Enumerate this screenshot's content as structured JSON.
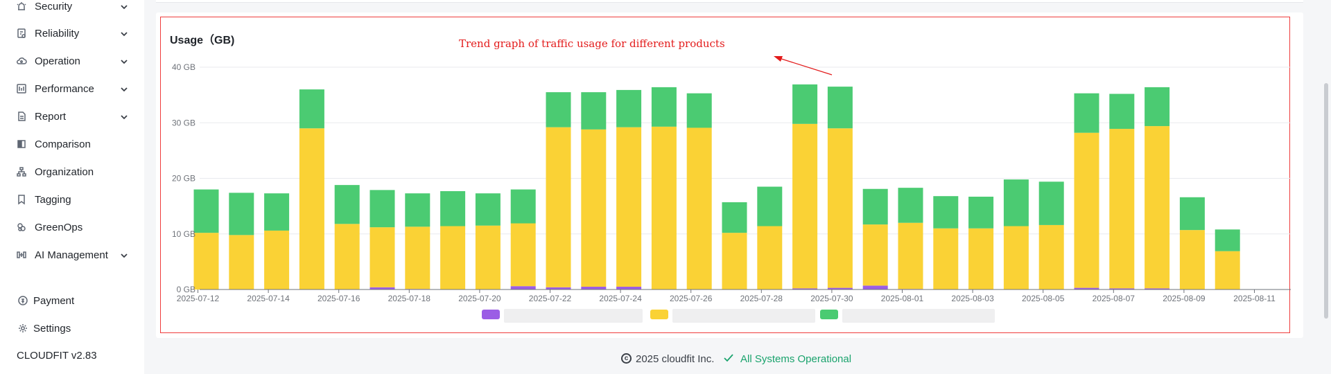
{
  "sidebar": {
    "items": [
      {
        "label": "Security",
        "icon": "alarm-icon",
        "expandable": true
      },
      {
        "label": "Reliability",
        "icon": "reliability-icon",
        "expandable": true
      },
      {
        "label": "Operation",
        "icon": "cloud-icon",
        "expandable": true
      },
      {
        "label": "Performance",
        "icon": "performance-icon",
        "expandable": true
      },
      {
        "label": "Report",
        "icon": "report-icon",
        "expandable": true
      },
      {
        "label": "Comparison",
        "icon": "comparison-icon",
        "expandable": false
      },
      {
        "label": "Organization",
        "icon": "organization-icon",
        "expandable": false
      },
      {
        "label": "Tagging",
        "icon": "tag-icon",
        "expandable": false
      },
      {
        "label": "GreenOps",
        "icon": "greenops-icon",
        "expandable": false
      },
      {
        "label": "AI Management",
        "icon": "ai-icon",
        "expandable": true
      }
    ],
    "bottom_items": [
      {
        "label": "Payment",
        "icon": "payment-icon"
      },
      {
        "label": "Settings",
        "icon": "gear-icon"
      }
    ],
    "version": "CLOUDFIT v2.83"
  },
  "annotation": "Trend graph of traffic usage for different products",
  "footer": {
    "copyright": "2025 cloudfit Inc.",
    "status": "All Systems Operational"
  },
  "colors": {
    "series_purple": "#9b5de5",
    "series_yellow": "#fad235",
    "series_green": "#4bcb72",
    "highlight": "#ef3b3b",
    "annotation": "#e31b1b",
    "status_green": "#1aa36d"
  },
  "chart_data": {
    "type": "bar",
    "stacked": true,
    "title": "Usage（GB)",
    "ylim": [
      0,
      40
    ],
    "y_ticks": [
      "0 GB",
      "10 GB",
      "20 GB",
      "30 GB",
      "40 GB"
    ],
    "y_tick_values": [
      0,
      10,
      20,
      30,
      40
    ],
    "grid": true,
    "x_ticks": [
      "2025-07-12",
      "2025-07-14",
      "2025-07-16",
      "2025-07-18",
      "2025-07-20",
      "2025-07-22",
      "2025-07-24",
      "2025-07-26",
      "2025-07-28",
      "2025-07-30",
      "2025-08-01",
      "2025-08-03",
      "2025-08-05",
      "2025-08-07",
      "2025-08-09",
      "2025-08-11"
    ],
    "categories": [
      "2025-07-12",
      "2025-07-13",
      "2025-07-14",
      "2025-07-15",
      "2025-07-16",
      "2025-07-17",
      "2025-07-18",
      "2025-07-19",
      "2025-07-20",
      "2025-07-21",
      "2025-07-22",
      "2025-07-23",
      "2025-07-24",
      "2025-07-25",
      "2025-07-26",
      "2025-07-27",
      "2025-07-28",
      "2025-07-29",
      "2025-07-30",
      "2025-07-31",
      "2025-08-01",
      "2025-08-02",
      "2025-08-03",
      "2025-08-04",
      "2025-08-05",
      "2025-08-06",
      "2025-08-07",
      "2025-08-08",
      "2025-08-09",
      "2025-08-10",
      "2025-08-11"
    ],
    "series": [
      {
        "color": "#9b5de5",
        "values": [
          0,
          0,
          0,
          0,
          0,
          0.4,
          0.1,
          0,
          0,
          0.6,
          0.4,
          0.5,
          0.5,
          0,
          0,
          0,
          0,
          0.2,
          0.3,
          0.7,
          0.1,
          0,
          0,
          0,
          0,
          0.3,
          0.2,
          0.2,
          0,
          0,
          0
        ]
      },
      {
        "color": "#fad235",
        "values": [
          10.2,
          9.8,
          10.6,
          29.0,
          11.8,
          10.8,
          11.2,
          11.4,
          11.5,
          11.3,
          28.8,
          28.3,
          28.7,
          29.3,
          29.1,
          10.2,
          11.4,
          29.6,
          28.7,
          11.0,
          11.9,
          11.0,
          11.0,
          11.4,
          11.6,
          27.9,
          28.7,
          29.2,
          10.7,
          6.9,
          0
        ]
      },
      {
        "color": "#4bcb72",
        "values": [
          7.8,
          7.6,
          6.7,
          7.0,
          7.0,
          6.7,
          6.0,
          6.3,
          5.8,
          6.1,
          6.3,
          6.7,
          6.7,
          7.1,
          6.2,
          5.5,
          7.1,
          7.1,
          7.5,
          6.4,
          6.3,
          5.8,
          5.7,
          8.4,
          7.8,
          7.1,
          6.3,
          7.0,
          5.9,
          3.9,
          0
        ]
      }
    ]
  }
}
